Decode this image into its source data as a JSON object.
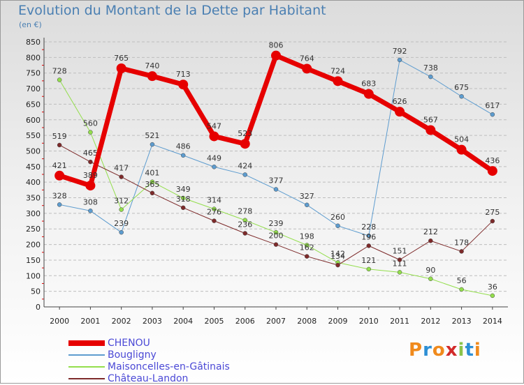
{
  "title": "Evolution du Montant de la Dette par Habitant",
  "subtitle": "(en €)",
  "logo": {
    "text": "Proxiti",
    "letter_colors": [
      "#f08a1c",
      "#2d8fd5",
      "#f08a1c",
      "#d22a2a",
      "#8bc34a",
      "#2d8fd5",
      "#f08a1c"
    ]
  },
  "chart_data": {
    "type": "line",
    "title": "Evolution du Montant de la Dette par Habitant",
    "subtitle": "(en €)",
    "xlabel": "",
    "ylabel": "",
    "x": [
      "2000",
      "2001",
      "2002",
      "2003",
      "2004",
      "2005",
      "2006",
      "2007",
      "2008",
      "2009",
      "2010",
      "2011",
      "2012",
      "2013",
      "2014"
    ],
    "ylim": [
      0,
      850
    ],
    "yticks": [
      0,
      50,
      100,
      150,
      200,
      250,
      300,
      350,
      400,
      450,
      500,
      550,
      600,
      650,
      700,
      750,
      800,
      850
    ],
    "grid": "horizontal dashed",
    "legend_position": "bottom-left",
    "series": [
      {
        "name": "CHENOU",
        "color": "#e60000",
        "line_width": 7,
        "marker_size": 7,
        "values": [
          421,
          389,
          765,
          740,
          713,
          547,
          523,
          806,
          764,
          724,
          683,
          626,
          567,
          504,
          436
        ]
      },
      {
        "name": "Bougligny",
        "color": "#5d9ccf",
        "line_width": 1,
        "marker_size": 3,
        "values": [
          328,
          308,
          239,
          521,
          486,
          449,
          424,
          377,
          327,
          260,
          228,
          792,
          738,
          675,
          617
        ]
      },
      {
        "name": "Maisoncelles-en-Gâtinais",
        "color": "#93de4c",
        "line_width": 1,
        "marker_size": 3,
        "values": [
          728,
          560,
          312,
          401,
          349,
          314,
          278,
          239,
          198,
          142,
          121,
          111,
          90,
          56,
          36
        ]
      },
      {
        "name": "Château-Landon",
        "color": "#7d2a2a",
        "line_width": 1,
        "marker_size": 3,
        "values": [
          519,
          465,
          417,
          365,
          318,
          276,
          236,
          200,
          162,
          134,
          196,
          151,
          212,
          178,
          275
        ]
      }
    ]
  }
}
